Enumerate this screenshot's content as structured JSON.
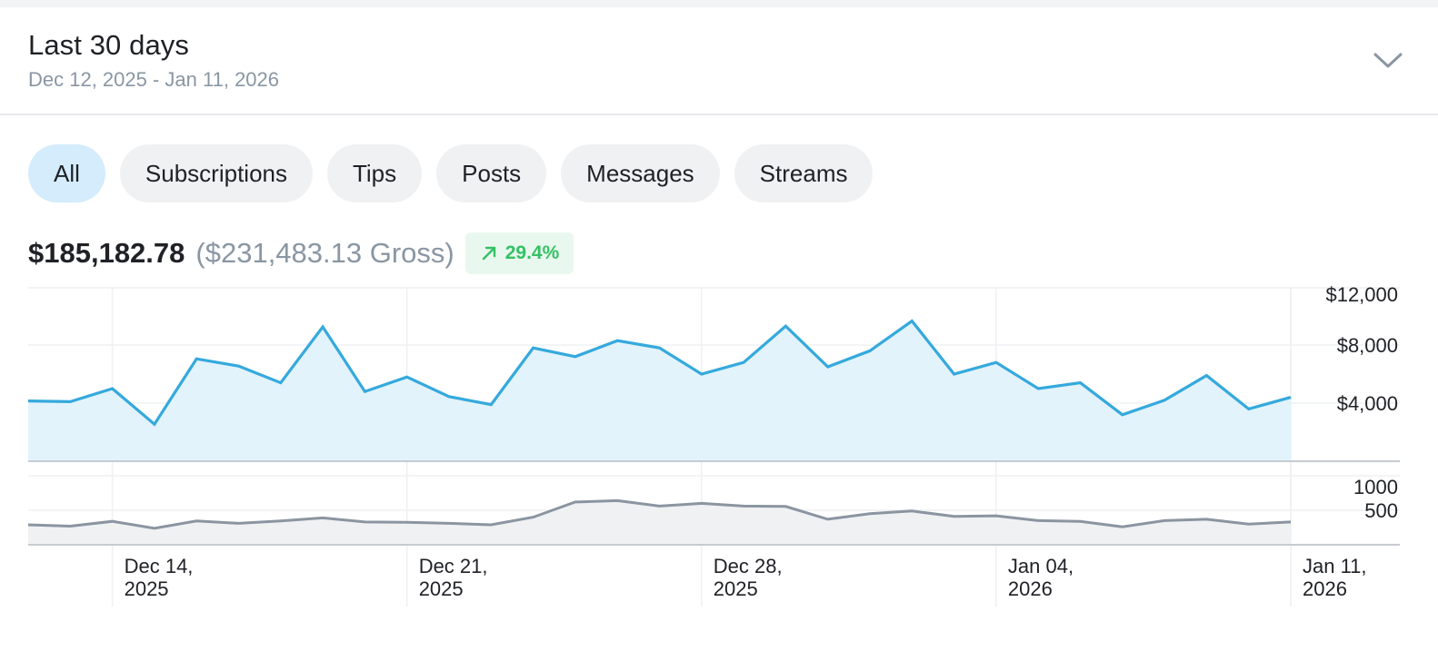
{
  "header": {
    "title": "Last 30 days",
    "date_range": "Dec 12, 2025 - Jan 11, 2026",
    "expand_icon": "chevron-down-icon"
  },
  "tabs": [
    {
      "label": "All",
      "active": true
    },
    {
      "label": "Subscriptions",
      "active": false
    },
    {
      "label": "Tips",
      "active": false
    },
    {
      "label": "Posts",
      "active": false
    },
    {
      "label": "Messages",
      "active": false
    },
    {
      "label": "Streams",
      "active": false
    }
  ],
  "summary": {
    "net": "$185,182.78",
    "gross": "($231,483.13 Gross)",
    "change": "29.4%",
    "change_icon": "arrow-up-right-icon"
  },
  "colors": {
    "earnings_line": "#35a9dc",
    "earnings_fill": "#e2f3fc",
    "count_line": "#8b95a1",
    "count_fill": "#eff1f3",
    "tab_active": "#d4ecfb",
    "positive": "#34c165"
  },
  "chart_data": {
    "type": "area",
    "x_ticks": [
      {
        "line1": "Dec 14,",
        "line2": "2025"
      },
      {
        "line1": "Dec 21,",
        "line2": "2025"
      },
      {
        "line1": "Dec 28,",
        "line2": "2025"
      },
      {
        "line1": "Jan 04,",
        "line2": "2026"
      },
      {
        "line1": "Jan 11,",
        "line2": "2026"
      }
    ],
    "upper": {
      "name": "Earnings",
      "y_ticks": [
        "$12,000",
        "$8,000",
        "$4,000"
      ],
      "ylim": [
        0,
        12000
      ],
      "values": [
        4150,
        4100,
        5000,
        2550,
        7050,
        6550,
        5400,
        9250,
        4800,
        5800,
        4450,
        3900,
        7800,
        7200,
        8300,
        7800,
        6000,
        6800,
        9300,
        6500,
        7600,
        9650,
        6000,
        6800,
        5000,
        5400,
        3200,
        4200,
        5900,
        3600,
        4400
      ]
    },
    "lower": {
      "name": "Count",
      "y_ticks": [
        "1000",
        "500"
      ],
      "ylim": [
        0,
        1000
      ],
      "values": [
        290,
        270,
        340,
        240,
        345,
        310,
        345,
        390,
        330,
        325,
        310,
        290,
        400,
        620,
        640,
        560,
        600,
        560,
        555,
        370,
        450,
        490,
        410,
        420,
        350,
        340,
        260,
        350,
        370,
        300,
        330
      ]
    }
  }
}
